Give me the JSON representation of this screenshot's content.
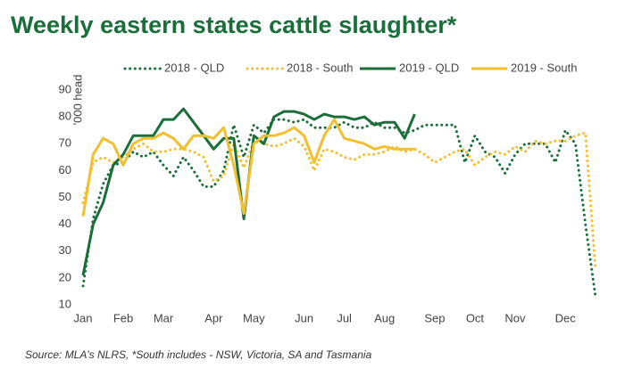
{
  "chart_data": {
    "type": "line",
    "title": "Weekly eastern states cattle slaughter*",
    "ylabel": "'000 head",
    "source": "Source: MLA's NLRS,   *South includes -  NSW, Victoria, SA and Tasmania",
    "categories": [
      "Jan",
      null,
      null,
      null,
      "Feb",
      null,
      null,
      null,
      "Mar",
      null,
      null,
      null,
      null,
      "Apr",
      null,
      null,
      null,
      "May",
      null,
      null,
      null,
      null,
      "Jun",
      null,
      null,
      null,
      "Jul",
      null,
      null,
      null,
      "Aug",
      null,
      null,
      null,
      null,
      "Sep",
      null,
      null,
      null,
      "Oct",
      null,
      null,
      null,
      "Nov",
      null,
      null,
      null,
      null,
      "Dec",
      null,
      null,
      null
    ],
    "ylim": [
      10,
      90
    ],
    "yticks": [
      10,
      20,
      30,
      40,
      50,
      60,
      70,
      80,
      90
    ],
    "grid": false,
    "legend": "top",
    "series": [
      {
        "name": "2018 - QLD",
        "color": "#1a6e3a",
        "style": "dotted",
        "values": [
          17,
          42,
          55,
          62,
          63,
          67,
          65,
          67,
          62,
          58,
          65,
          60,
          54,
          54,
          60,
          77,
          65,
          77,
          74,
          79,
          79,
          78,
          79,
          76,
          76,
          76,
          78,
          76,
          76,
          78,
          76,
          76,
          74,
          75,
          77,
          77,
          77,
          77,
          63,
          73,
          67,
          65,
          59,
          66,
          70,
          70,
          70,
          63,
          75,
          70,
          40,
          13
        ]
      },
      {
        "name": "2018 - South",
        "color": "#f2bf2f",
        "style": "dotted",
        "values": [
          48,
          63,
          65,
          63,
          65,
          68,
          70,
          67,
          67,
          68,
          68,
          67,
          65,
          56,
          58,
          70,
          61,
          71,
          70,
          69,
          70,
          72,
          69,
          60,
          68,
          67,
          65,
          64,
          66,
          66,
          67,
          69,
          67,
          68,
          66,
          63,
          65,
          67,
          68,
          62,
          65,
          67,
          66,
          69,
          67,
          71,
          70,
          71,
          71,
          73,
          74,
          23
        ]
      },
      {
        "name": "2019 - QLD",
        "color": "#1a6e3a",
        "style": "solid",
        "values": [
          21,
          40,
          48,
          62,
          66,
          73,
          73,
          73,
          79,
          79,
          83,
          78,
          73,
          68,
          72,
          72,
          42,
          73,
          70,
          80,
          82,
          82,
          81,
          79,
          81,
          80,
          80,
          79,
          80,
          77,
          78,
          78,
          72,
          81,
          null,
          null,
          null,
          null,
          null,
          null,
          null,
          null,
          null,
          null,
          null,
          null,
          null,
          null,
          null,
          null,
          null,
          null
        ]
      },
      {
        "name": "2019 - South",
        "color": "#f2bf2f",
        "style": "solid",
        "values": [
          43,
          66,
          72,
          70,
          62,
          70,
          72,
          72,
          74,
          72,
          68,
          73,
          73,
          72,
          76,
          62,
          44,
          70,
          73,
          73,
          74,
          76,
          73,
          63,
          73,
          79,
          72,
          71,
          70,
          68,
          69,
          68,
          68,
          68,
          null,
          null,
          null,
          null,
          null,
          null,
          null,
          null,
          null,
          null,
          null,
          null,
          null,
          null,
          null,
          null,
          null,
          null
        ]
      }
    ]
  }
}
